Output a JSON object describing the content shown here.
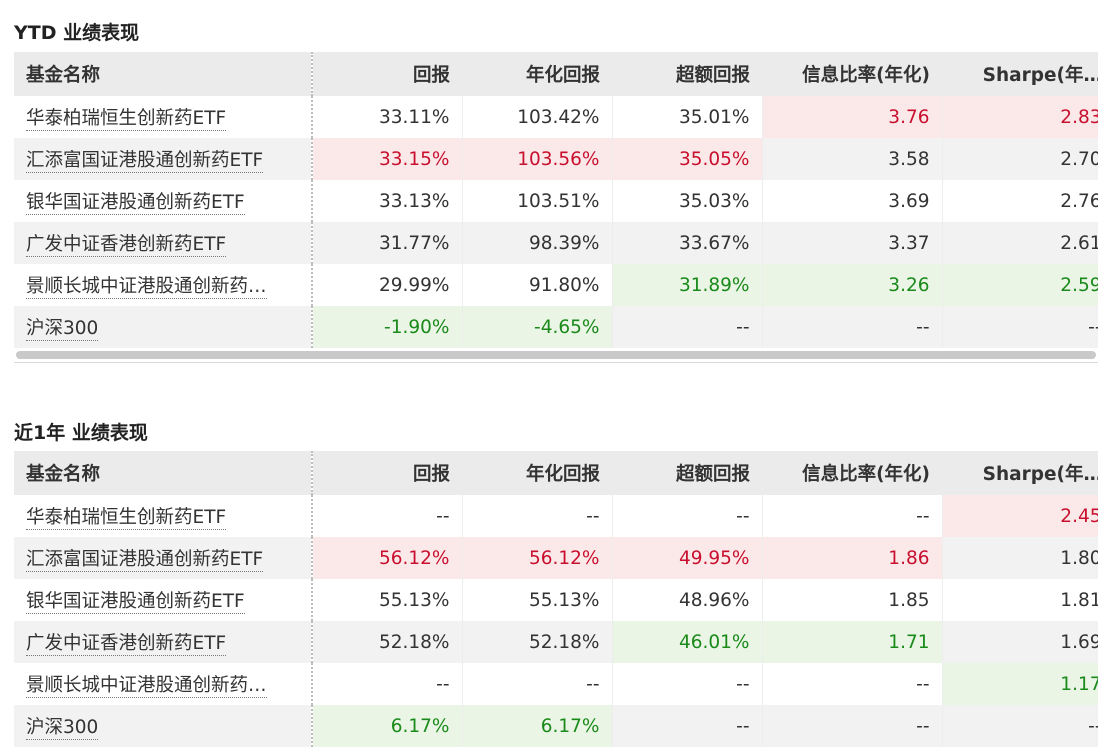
{
  "colors": {
    "positive": "#c8102e",
    "positive_bg": "#fbe9ea",
    "negative": "#1a8a1a",
    "negative_bg": "#eaf5e6",
    "header_bg": "#ebebeb"
  },
  "ytd": {
    "title": "YTD 业绩表现",
    "columns": [
      "基金名称",
      "回报",
      "年化回报",
      "超额回报",
      "信息比率(年化)",
      "Sharpe(年…"
    ],
    "rows": [
      {
        "name": "华泰柏瑞恒生创新药ETF",
        "vals": [
          "33.11%",
          "103.42%",
          "35.01%",
          "3.76",
          "2.83"
        ]
      },
      {
        "name": "汇添富国证港股通创新药ETF",
        "vals": [
          "33.15%",
          "103.56%",
          "35.05%",
          "3.58",
          "2.70"
        ]
      },
      {
        "name": "银华国证港股通创新药ETF",
        "vals": [
          "33.13%",
          "103.51%",
          "35.03%",
          "3.69",
          "2.76"
        ]
      },
      {
        "name": "广发中证香港创新药ETF",
        "vals": [
          "31.77%",
          "98.39%",
          "33.67%",
          "3.37",
          "2.61"
        ]
      },
      {
        "name": "景顺长城中证港股通创新药…",
        "vals": [
          "29.99%",
          "91.80%",
          "31.89%",
          "3.26",
          "2.59"
        ]
      },
      {
        "name": "沪深300",
        "vals": [
          "-1.90%",
          "-4.65%",
          "--",
          "--",
          "--"
        ]
      }
    ]
  },
  "y1": {
    "title": "近1年 业绩表现",
    "columns": [
      "基金名称",
      "回报",
      "年化回报",
      "超额回报",
      "信息比率(年化)",
      "Sharpe(年…"
    ],
    "rows": [
      {
        "name": "华泰柏瑞恒生创新药ETF",
        "vals": [
          "--",
          "--",
          "--",
          "--",
          "2.45"
        ]
      },
      {
        "name": "汇添富国证港股通创新药ETF",
        "vals": [
          "56.12%",
          "56.12%",
          "49.95%",
          "1.86",
          "1.80"
        ]
      },
      {
        "name": "银华国证港股通创新药ETF",
        "vals": [
          "55.13%",
          "55.13%",
          "48.96%",
          "1.85",
          "1.81"
        ]
      },
      {
        "name": "广发中证香港创新药ETF",
        "vals": [
          "52.18%",
          "52.18%",
          "46.01%",
          "1.71",
          "1.69"
        ]
      },
      {
        "name": "景顺长城中证港股通创新药…",
        "vals": [
          "--",
          "--",
          "--",
          "--",
          "1.17"
        ]
      },
      {
        "name": "沪深300",
        "vals": [
          "6.17%",
          "6.17%",
          "--",
          "--",
          "--"
        ]
      }
    ]
  }
}
